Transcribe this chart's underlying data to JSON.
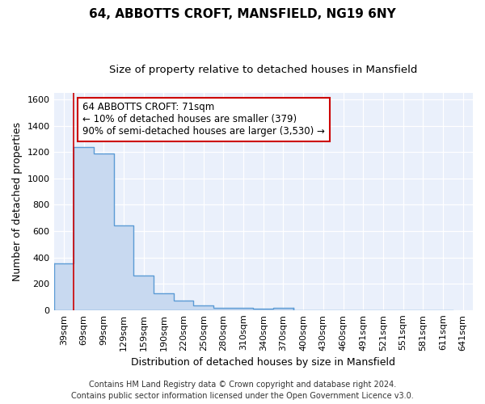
{
  "title1": "64, ABBOTTS CROFT, MANSFIELD, NG19 6NY",
  "title2": "Size of property relative to detached houses in Mansfield",
  "xlabel": "Distribution of detached houses by size in Mansfield",
  "ylabel": "Number of detached properties",
  "bin_labels": [
    "39sqm",
    "69sqm",
    "99sqm",
    "129sqm",
    "159sqm",
    "190sqm",
    "220sqm",
    "250sqm",
    "280sqm",
    "310sqm",
    "340sqm",
    "370sqm",
    "400sqm",
    "430sqm",
    "460sqm",
    "491sqm",
    "521sqm",
    "551sqm",
    "581sqm",
    "611sqm",
    "641sqm"
  ],
  "bar_heights": [
    355,
    1240,
    1190,
    645,
    260,
    125,
    75,
    35,
    20,
    15,
    10,
    15,
    0,
    0,
    0,
    0,
    0,
    0,
    0,
    0,
    0
  ],
  "bar_color": "#c8d9f0",
  "bar_edge_color": "#5b9bd5",
  "ylim": [
    0,
    1650
  ],
  "yticks": [
    0,
    200,
    400,
    600,
    800,
    1000,
    1200,
    1400,
    1600
  ],
  "red_line_bin": 1,
  "annotation_text_line1": "64 ABBOTTS CROFT: 71sqm",
  "annotation_text_line2": "← 10% of detached houses are smaller (379)",
  "annotation_text_line3": "90% of semi-detached houses are larger (3,530) →",
  "annotation_box_color": "#ffffff",
  "annotation_box_edge": "#cc0000",
  "footer1": "Contains HM Land Registry data © Crown copyright and database right 2024.",
  "footer2": "Contains public sector information licensed under the Open Government Licence v3.0.",
  "bg_color": "#eaf0fb",
  "grid_color": "#ffffff",
  "title1_fontsize": 11,
  "title2_fontsize": 9.5,
  "axis_label_fontsize": 9,
  "tick_fontsize": 8,
  "annotation_fontsize": 8.5,
  "footer_fontsize": 7
}
